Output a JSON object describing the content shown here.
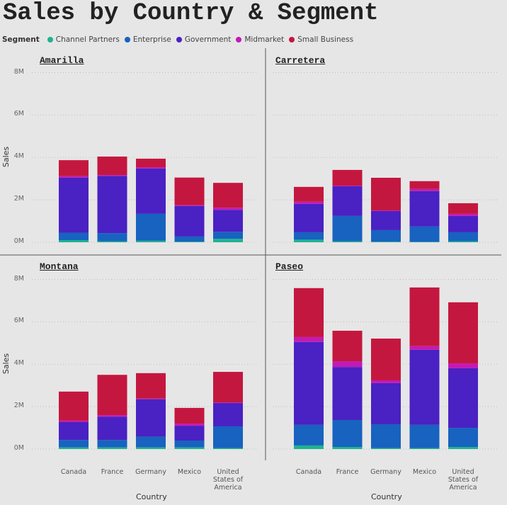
{
  "chart_data": {
    "type": "bar",
    "title": "Sales by Country & Segment",
    "legend_title": "Segment",
    "xlabel": "Country",
    "ylabel": "Sales",
    "categories": [
      "Canada",
      "France",
      "Germany",
      "Mexico",
      "United States of America"
    ],
    "series": [
      {
        "name": "Channel Partners",
        "color": "#1fb38f"
      },
      {
        "name": "Enterprise",
        "color": "#1862c0"
      },
      {
        "name": "Government",
        "color": "#4a21c2"
      },
      {
        "name": "Midmarket",
        "color": "#c21ab4"
      },
      {
        "name": "Small Business",
        "color": "#c4173f"
      }
    ],
    "ylim": [
      0,
      8000000
    ],
    "yticks": [
      {
        "value": 0,
        "label": "0M"
      },
      {
        "value": 2000000,
        "label": "2M"
      },
      {
        "value": 4000000,
        "label": "4M"
      },
      {
        "value": 6000000,
        "label": "6M"
      },
      {
        "value": 8000000,
        "label": "8M"
      }
    ],
    "grid": true,
    "panels": [
      {
        "title": "Amarilla",
        "values": [
          [
            100000,
            50000,
            70000,
            30000,
            160000
          ],
          [
            350000,
            380000,
            1270000,
            240000,
            330000
          ],
          [
            2600000,
            2700000,
            2140000,
            1440000,
            1040000
          ],
          [
            70000,
            40000,
            60000,
            40000,
            100000
          ],
          [
            750000,
            870000,
            400000,
            1300000,
            1170000
          ]
        ]
      },
      {
        "title": "Carretera",
        "values": [
          [
            120000,
            50000,
            30000,
            20000,
            50000
          ],
          [
            350000,
            1190000,
            540000,
            720000,
            420000
          ],
          [
            1340000,
            1400000,
            900000,
            1670000,
            770000
          ],
          [
            100000,
            30000,
            30000,
            100000,
            100000
          ],
          [
            700000,
            740000,
            1540000,
            370000,
            500000
          ]
        ]
      },
      {
        "title": "Montana",
        "values": [
          [
            80000,
            80000,
            80000,
            80000,
            50000
          ],
          [
            350000,
            350000,
            500000,
            320000,
            1020000
          ],
          [
            840000,
            1100000,
            1770000,
            700000,
            1100000
          ],
          [
            70000,
            70000,
            30000,
            100000,
            30000
          ],
          [
            1370000,
            1900000,
            1200000,
            740000,
            1440000
          ]
        ]
      },
      {
        "title": "Paseo",
        "values": [
          [
            170000,
            100000,
            50000,
            50000,
            100000
          ],
          [
            970000,
            1270000,
            1120000,
            1090000,
            900000
          ],
          [
            3910000,
            2500000,
            1940000,
            3540000,
            2810000
          ],
          [
            230000,
            270000,
            130000,
            170000,
            230000
          ],
          [
            2310000,
            1440000,
            1970000,
            2770000,
            2880000
          ]
        ]
      }
    ]
  }
}
